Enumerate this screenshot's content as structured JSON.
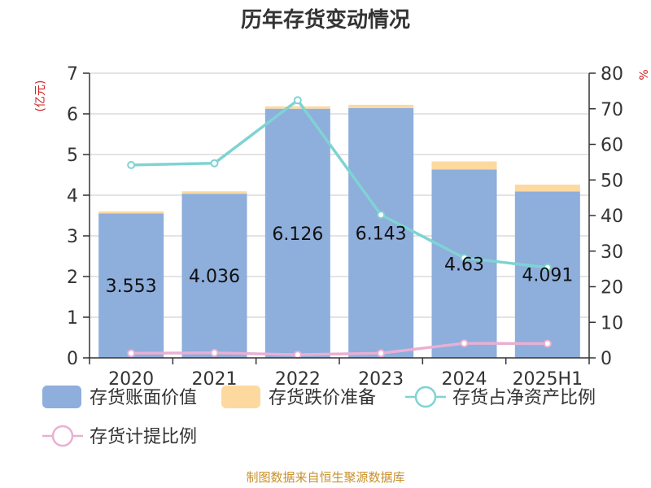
{
  "chart_data": {
    "type": "bar",
    "title": "历年存货变动情况",
    "categories": [
      "2020",
      "2021",
      "2022",
      "2023",
      "2024",
      "2025H1"
    ],
    "y_left": {
      "unit": "(亿元)",
      "ylim": [
        0,
        7
      ],
      "ticks": [
        0,
        1,
        2,
        3,
        4,
        5,
        6,
        7
      ]
    },
    "y_right": {
      "unit": "%",
      "ylim": [
        0,
        80
      ],
      "ticks": [
        0,
        10,
        20,
        30,
        40,
        50,
        60,
        70,
        80
      ]
    },
    "series": [
      {
        "name": "存货账面价值",
        "type": "bar",
        "axis": "left",
        "stack": "inventory",
        "color": "#8eaedc",
        "values": [
          3.553,
          4.036,
          6.126,
          6.143,
          4.63,
          4.091
        ],
        "labels": [
          "3.553",
          "4.036",
          "6.126",
          "6.143",
          "4.63",
          "4.091"
        ]
      },
      {
        "name": "存货跌价准备",
        "type": "bar",
        "axis": "left",
        "stack": "inventory",
        "color": "#fdd9a0",
        "values": [
          0.05,
          0.06,
          0.06,
          0.08,
          0.2,
          0.17
        ]
      },
      {
        "name": "存货占净资产比例",
        "type": "line",
        "axis": "right",
        "color": "#7fd3d3",
        "values": [
          54.2,
          54.7,
          72.4,
          40.2,
          28.1,
          25.4
        ]
      },
      {
        "name": "存货计提比例",
        "type": "line",
        "axis": "right",
        "color": "#e8b0d4",
        "values": [
          1.3,
          1.4,
          0.9,
          1.3,
          4.1,
          4.0
        ]
      }
    ],
    "grid": true,
    "legend_position": "bottom"
  },
  "source": "制图数据来自恒生聚源数据库"
}
